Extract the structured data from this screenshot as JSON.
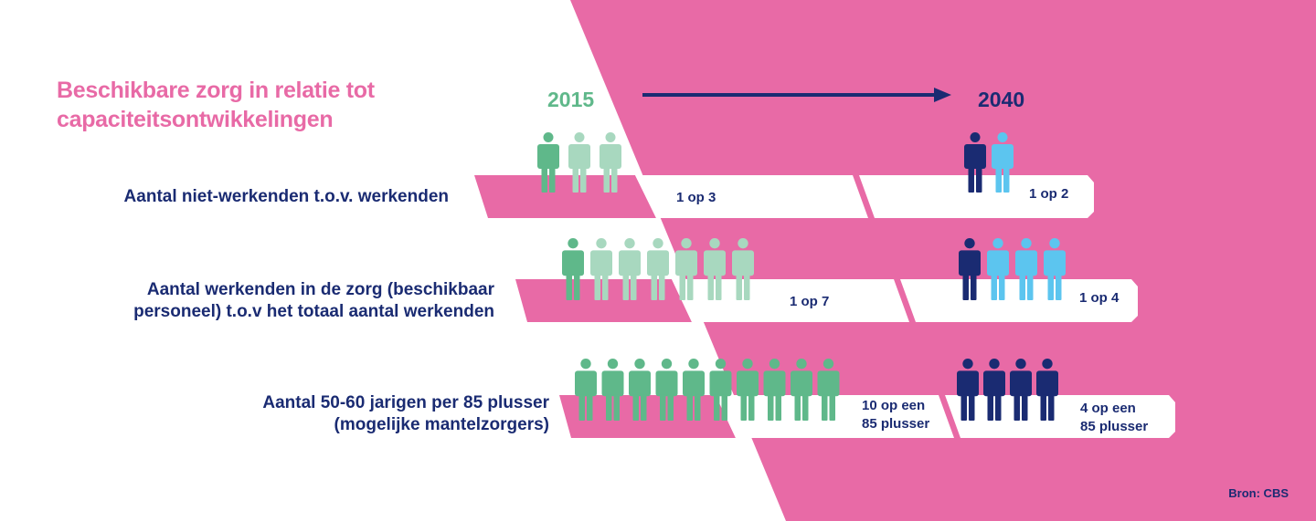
{
  "title": {
    "line1": "Beschikbare zorg in relatie tot",
    "line2": "capaciteitsontwikkelingen"
  },
  "years": {
    "start": "2015",
    "end": "2040"
  },
  "rows": [
    {
      "label_lines": [
        "Aantal niet-werkenden t.o.v. werkenden"
      ],
      "ratio_2015_lines": [
        "1 op 3"
      ],
      "ratio_2040_lines": [
        "1 op 2"
      ],
      "people_2015": {
        "dark": 1,
        "light": 2
      },
      "people_2040": {
        "dark": 1,
        "light": 1
      }
    },
    {
      "label_lines": [
        "Aantal werkenden in de zorg (beschikbaar",
        "personeel) t.o.v het totaal aantal werkenden"
      ],
      "ratio_2015_lines": [
        "1 op 7"
      ],
      "ratio_2040_lines": [
        "1 op 4"
      ],
      "people_2015": {
        "dark": 1,
        "light": 6
      },
      "people_2040": {
        "dark": 1,
        "light": 3
      }
    },
    {
      "label_lines": [
        "Aantal 50-60 jarigen per 85 plusser",
        "(mogelijke mantelzorgers)"
      ],
      "ratio_2015_lines": [
        "10 op een",
        "85 plusser"
      ],
      "ratio_2040_lines": [
        "4 op een",
        "85 plusser"
      ],
      "people_2015": {
        "dark": 10,
        "light": 0
      },
      "people_2040": {
        "dark": 4,
        "light": 0
      }
    }
  ],
  "source": "Bron: CBS",
  "colors": {
    "pink": "#e86aa6",
    "navy": "#1a2b72",
    "green_dark": "#5fb88a",
    "green_light": "#a8d8bf",
    "blue_dark": "#1a2b72",
    "blue_light": "#5cc5ef",
    "white": "#ffffff"
  },
  "icons": {
    "person": "person-icon",
    "arrow": "arrow-right-icon"
  }
}
